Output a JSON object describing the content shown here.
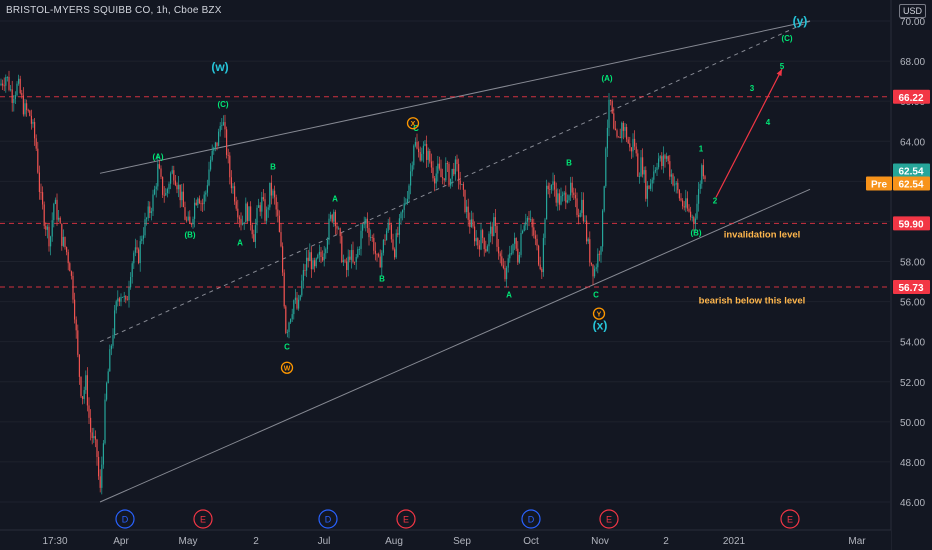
{
  "header": {
    "title": "BRISTOL-MYERS SQUIBB CO, 1h, Cboe BZX",
    "currency": "USD"
  },
  "chart_data": {
    "type": "candlestick",
    "symbol": "BRISTOL-MYERS SQUIBB CO",
    "interval": "1h",
    "exchange": "Cboe BZX",
    "ylim": [
      45.0,
      70.5
    ],
    "y_ticks": [
      46.0,
      48.0,
      50.0,
      52.0,
      54.0,
      56.0,
      58.0,
      60.0,
      62.0,
      64.0,
      66.0,
      68.0,
      70.0
    ],
    "x_ticks": [
      "17:30",
      "Apr",
      "May",
      "2",
      "Jul",
      "Aug",
      "Sep",
      "Oct",
      "Nov",
      "2",
      "2021",
      "Mar"
    ],
    "price_path": [
      [
        0,
        66.8
      ],
      [
        6,
        67.3
      ],
      [
        12,
        66.3
      ],
      [
        18,
        66.8
      ],
      [
        24,
        65.6
      ],
      [
        30,
        65.3
      ],
      [
        36,
        63.8
      ],
      [
        40,
        61.3
      ],
      [
        45,
        60.0
      ],
      [
        50,
        59.0
      ],
      [
        54,
        61.0
      ],
      [
        58,
        60.2
      ],
      [
        62,
        59.1
      ],
      [
        66,
        58.6
      ],
      [
        70,
        57.8
      ],
      [
        74,
        56.0
      ],
      [
        78,
        53.0
      ],
      [
        82,
        51.2
      ],
      [
        86,
        52.0
      ],
      [
        90,
        49.6
      ],
      [
        94,
        49.0
      ],
      [
        97,
        48.3
      ],
      [
        100,
        46.3
      ],
      [
        103,
        49.0
      ],
      [
        106,
        51.5
      ],
      [
        110,
        53.3
      ],
      [
        114,
        55.0
      ],
      [
        118,
        56.3
      ],
      [
        122,
        56.5
      ],
      [
        126,
        55.7
      ],
      [
        130,
        57.5
      ],
      [
        134,
        58.5
      ],
      [
        138,
        58.1
      ],
      [
        142,
        59.4
      ],
      [
        146,
        60.0
      ],
      [
        150,
        60.6
      ],
      [
        154,
        61.3
      ],
      [
        158,
        62.7
      ],
      [
        162,
        61.6
      ],
      [
        166,
        61.3
      ],
      [
        170,
        62.3
      ],
      [
        174,
        62.5
      ],
      [
        178,
        61.8
      ],
      [
        182,
        61.0
      ],
      [
        186,
        60.0
      ],
      [
        190,
        59.7
      ],
      [
        194,
        60.8
      ],
      [
        198,
        61.5
      ],
      [
        202,
        60.8
      ],
      [
        206,
        61.5
      ],
      [
        210,
        63.0
      ],
      [
        214,
        63.5
      ],
      [
        218,
        64.1
      ],
      [
        222,
        65.3
      ],
      [
        226,
        63.8
      ],
      [
        230,
        62.2
      ],
      [
        234,
        61.5
      ],
      [
        238,
        60.6
      ],
      [
        242,
        59.9
      ],
      [
        246,
        60.6
      ],
      [
        250,
        60.2
      ],
      [
        254,
        59.3
      ],
      [
        258,
        60.6
      ],
      [
        262,
        61.0
      ],
      [
        266,
        60.1
      ],
      [
        270,
        61.6
      ],
      [
        274,
        61.2
      ],
      [
        278,
        60.0
      ],
      [
        282,
        58.0
      ],
      [
        286,
        54.5
      ],
      [
        290,
        55.3
      ],
      [
        294,
        56.1
      ],
      [
        298,
        55.5
      ],
      [
        302,
        57.0
      ],
      [
        306,
        57.9
      ],
      [
        310,
        58.3
      ],
      [
        314,
        57.4
      ],
      [
        318,
        58.1
      ],
      [
        322,
        58.3
      ],
      [
        326,
        59.1
      ],
      [
        330,
        60.0
      ],
      [
        334,
        60.6
      ],
      [
        338,
        59.5
      ],
      [
        342,
        58.3
      ],
      [
        346,
        57.4
      ],
      [
        350,
        58.5
      ],
      [
        354,
        57.6
      ],
      [
        358,
        58.6
      ],
      [
        362,
        59.6
      ],
      [
        366,
        60.1
      ],
      [
        370,
        59.4
      ],
      [
        374,
        58.8
      ],
      [
        378,
        57.7
      ],
      [
        382,
        58.5
      ],
      [
        386,
        59.5
      ],
      [
        390,
        59.8
      ],
      [
        394,
        58.5
      ],
      [
        398,
        59.4
      ],
      [
        402,
        60.3
      ],
      [
        406,
        61.1
      ],
      [
        410,
        62.2
      ],
      [
        414,
        64.1
      ],
      [
        418,
        63.3
      ],
      [
        422,
        63.6
      ],
      [
        426,
        63.5
      ],
      [
        430,
        63.0
      ],
      [
        434,
        62.3
      ],
      [
        438,
        62.5
      ],
      [
        442,
        62.1
      ],
      [
        446,
        62.7
      ],
      [
        450,
        62.0
      ],
      [
        454,
        62.8
      ],
      [
        458,
        62.4
      ],
      [
        462,
        61.5
      ],
      [
        466,
        60.6
      ],
      [
        470,
        59.9
      ],
      [
        474,
        59.4
      ],
      [
        478,
        58.9
      ],
      [
        482,
        59.3
      ],
      [
        486,
        58.7
      ],
      [
        490,
        59.4
      ],
      [
        494,
        59.8
      ],
      [
        498,
        58.8
      ],
      [
        502,
        57.6
      ],
      [
        506,
        57.1
      ],
      [
        510,
        58.6
      ],
      [
        514,
        59.0
      ],
      [
        518,
        58.2
      ],
      [
        522,
        59.8
      ],
      [
        526,
        60.3
      ],
      [
        530,
        59.9
      ],
      [
        534,
        59.3
      ],
      [
        538,
        58.3
      ],
      [
        542,
        57.8
      ],
      [
        546,
        61.3
      ],
      [
        550,
        61.9
      ],
      [
        554,
        61.7
      ],
      [
        558,
        61.1
      ],
      [
        562,
        61.0
      ],
      [
        566,
        61.4
      ],
      [
        570,
        61.6
      ],
      [
        574,
        60.9
      ],
      [
        578,
        60.5
      ],
      [
        582,
        61.0
      ],
      [
        586,
        59.4
      ],
      [
        590,
        58.2
      ],
      [
        594,
        57.5
      ],
      [
        598,
        58.3
      ],
      [
        602,
        59.4
      ],
      [
        606,
        64.2
      ],
      [
        610,
        66.1
      ],
      [
        614,
        64.3
      ],
      [
        618,
        63.8
      ],
      [
        622,
        64.9
      ],
      [
        626,
        64.4
      ],
      [
        630,
        63.5
      ],
      [
        634,
        64.1
      ],
      [
        638,
        62.5
      ],
      [
        642,
        63.0
      ],
      [
        646,
        61.5
      ],
      [
        650,
        61.9
      ],
      [
        654,
        62.6
      ],
      [
        658,
        63.2
      ],
      [
        662,
        62.8
      ],
      [
        666,
        63.4
      ],
      [
        670,
        62.5
      ],
      [
        674,
        62.0
      ],
      [
        678,
        61.4
      ],
      [
        682,
        60.9
      ],
      [
        686,
        60.7
      ],
      [
        690,
        60.3
      ],
      [
        694,
        60.1
      ],
      [
        698,
        61.2
      ],
      [
        702,
        62.8
      ],
      [
        706,
        62.3
      ]
    ],
    "horizontal_levels": [
      {
        "price": 66.22,
        "label": "66.22",
        "line_color": "#f23645",
        "label_bg": "#f23645",
        "label_fg": "#ffffff"
      },
      {
        "price": 62.54,
        "label": "62.54",
        "line_color": "#26a69a",
        "label_bg": "#26a69a",
        "label_fg": "#ffffff"
      },
      {
        "price": 62.54,
        "label": "62.54",
        "tag": "Pre",
        "line_color": "#f7931a",
        "label_bg": "#f7931a",
        "label_fg": "#ffffff"
      },
      {
        "price": 59.9,
        "label": "59.90",
        "line_color": "#f23645",
        "label_bg": "#f23645",
        "label_fg": "#ffffff"
      },
      {
        "price": 56.73,
        "label": "56.73",
        "line_color": "#f23645",
        "label_bg": "#f23645",
        "label_fg": "#ffffff"
      }
    ],
    "annotations": [
      {
        "text": "(w)",
        "color": "#26c6da",
        "size": 12,
        "x": 220,
        "y": 67.5
      },
      {
        "text": "(C)",
        "color": "#00e676",
        "size": 8,
        "x": 223,
        "y": 65.7
      },
      {
        "text": "(A)",
        "color": "#00e676",
        "size": 8,
        "x": 158,
        "y": 63.1
      },
      {
        "text": "(B)",
        "color": "#00e676",
        "size": 8,
        "x": 190,
        "y": 59.2
      },
      {
        "text": "A",
        "color": "#00e676",
        "size": 8,
        "x": 240,
        "y": 58.8
      },
      {
        "text": "B",
        "color": "#00e676",
        "size": 8,
        "x": 273,
        "y": 62.6
      },
      {
        "text": "C",
        "color": "#00e676",
        "size": 8,
        "x": 287,
        "y": 53.6
      },
      {
        "text": "A",
        "color": "#00e676",
        "size": 8,
        "x": 335,
        "y": 61.0
      },
      {
        "text": "B",
        "color": "#00e676",
        "size": 8,
        "x": 382,
        "y": 57.0
      },
      {
        "text": "C",
        "color": "#00e676",
        "size": 8,
        "x": 416,
        "y": 64.5
      },
      {
        "text": "A",
        "color": "#00e676",
        "size": 8,
        "x": 509,
        "y": 56.2
      },
      {
        "text": "B",
        "color": "#00e676",
        "size": 8,
        "x": 569,
        "y": 62.8
      },
      {
        "text": "C",
        "color": "#00e676",
        "size": 8,
        "x": 596,
        "y": 56.2
      },
      {
        "text": "(A)",
        "color": "#00e676",
        "size": 8,
        "x": 607,
        "y": 67.0
      },
      {
        "text": "(B)",
        "color": "#00e676",
        "size": 8,
        "x": 696,
        "y": 59.3
      },
      {
        "text": "1",
        "color": "#00e676",
        "size": 8,
        "x": 701,
        "y": 63.5
      },
      {
        "text": "2",
        "color": "#00e676",
        "size": 8,
        "x": 715,
        "y": 60.9
      },
      {
        "text": "3",
        "color": "#00e676",
        "size": 8,
        "x": 752,
        "y": 66.5
      },
      {
        "text": "4",
        "color": "#00e676",
        "size": 8,
        "x": 768,
        "y": 64.8
      },
      {
        "text": "5",
        "color": "#00e676",
        "size": 8,
        "x": 782,
        "y": 67.6
      },
      {
        "text": "(C)",
        "color": "#00e676",
        "size": 8,
        "x": 787,
        "y": 69.0
      },
      {
        "text": "(y)",
        "color": "#26c6da",
        "size": 12,
        "x": 800,
        "y": 69.8
      },
      {
        "text": "(x)",
        "color": "#26c6da",
        "size": 12,
        "x": 600,
        "y": 54.6
      },
      {
        "text": "invalidation level",
        "color": "#ffb74d",
        "size": 9.5,
        "x": 762,
        "y": 59.2
      },
      {
        "text": "bearish below this level",
        "color": "#ffb74d",
        "size": 9.5,
        "x": 752,
        "y": 55.9
      }
    ],
    "circle_markers": [
      {
        "text": "W",
        "x": 287,
        "y": 52.7
      },
      {
        "text": "X",
        "x": 413,
        "y": 64.9
      },
      {
        "text": "Y",
        "x": 599,
        "y": 55.4
      }
    ],
    "channels": [
      {
        "from": [
          100,
          46.0
        ],
        "to": [
          810,
          61.6
        ],
        "color": "#868993",
        "style": "solid"
      },
      {
        "from": [
          100,
          62.4
        ],
        "to": [
          810,
          70.0
        ],
        "color": "#868993",
        "style": "solid"
      },
      {
        "from": [
          100,
          54.0
        ],
        "to": [
          810,
          70.0
        ],
        "color": "#868993",
        "style": "dashed"
      }
    ],
    "projection": [
      [
        716,
        61.2
      ],
      [
        782,
        67.6
      ]
    ],
    "events": [
      {
        "text": "D",
        "x": 125,
        "color": "#2962ff"
      },
      {
        "text": "E",
        "x": 203,
        "color": "#f23645"
      },
      {
        "text": "D",
        "x": 328,
        "color": "#2962ff"
      },
      {
        "text": "E",
        "x": 406,
        "color": "#f23645"
      },
      {
        "text": "D",
        "x": 531,
        "color": "#2962ff"
      },
      {
        "text": "E",
        "x": 609,
        "color": "#f23645"
      },
      {
        "text": "E",
        "x": 790,
        "color": "#f23645"
      }
    ]
  }
}
